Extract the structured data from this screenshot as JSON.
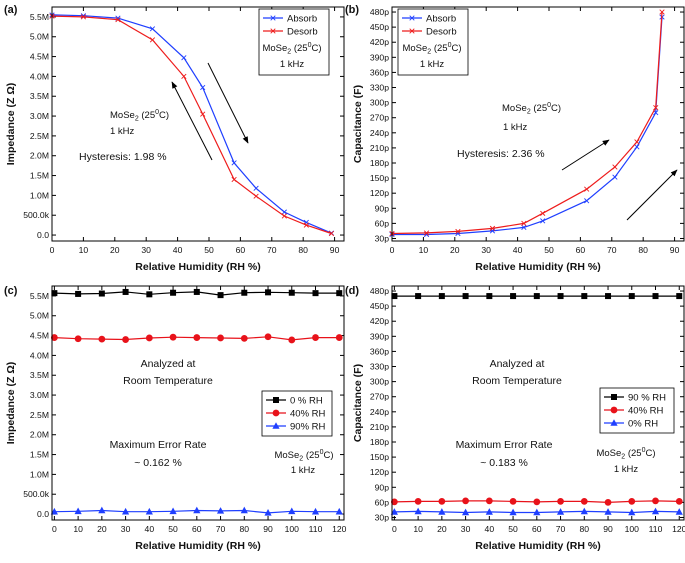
{
  "chart_data": [
    {
      "panel": "(a)",
      "type": "line",
      "xlabel": "Relative Humidity (RH %)",
      "ylabel": "Impedance (Z Ω)",
      "xlim": [
        0,
        93
      ],
      "xticks": [
        0,
        10,
        20,
        30,
        40,
        50,
        60,
        70,
        80,
        90
      ],
      "ylim": [
        -0.15,
        5.75
      ],
      "yticks": [
        0,
        0.5,
        1.0,
        1.5,
        2.0,
        2.5,
        3.0,
        3.5,
        4.0,
        4.5,
        5.0,
        5.5
      ],
      "ytick_labels": [
        "0.0",
        "500.0k",
        "1.0M",
        "1.5M",
        "2.0M",
        "2.5M",
        "3.0M",
        "3.5M",
        "4.0M",
        "4.5M",
        "5.0M",
        "5.5M"
      ],
      "series": [
        {
          "name": "Absorb",
          "color": "#1f3fff",
          "marker": "x",
          "x": [
            0,
            10,
            21,
            32,
            42,
            48,
            58,
            65,
            74,
            81,
            89
          ],
          "y": [
            5.55,
            5.53,
            5.47,
            5.2,
            4.47,
            3.72,
            1.82,
            1.18,
            0.58,
            0.32,
            0.05
          ]
        },
        {
          "name": "Desorb",
          "color": "#ee1c1c",
          "marker": "x",
          "x": [
            0,
            10,
            21,
            32,
            42,
            48,
            58,
            65,
            74,
            81,
            89
          ],
          "y": [
            5.52,
            5.5,
            5.43,
            4.92,
            4.0,
            3.05,
            1.4,
            0.98,
            0.48,
            0.25,
            0.04
          ]
        }
      ],
      "legend": [
        "Absorb",
        "Desorb"
      ],
      "legend_note": [
        "MoSe2 (25°C)",
        "1 kHz"
      ],
      "annotations": [
        "MoSe2 (25°C)",
        "1 kHz",
        "Hysteresis: 1.98 %"
      ]
    },
    {
      "panel": "(b)",
      "type": "line",
      "xlabel": "Relative Humidity (RH %)",
      "ylabel": "Capacitance (F)",
      "xlim": [
        0,
        93
      ],
      "xticks": [
        0,
        10,
        20,
        30,
        40,
        50,
        60,
        70,
        80,
        90
      ],
      "ylim": [
        25,
        490
      ],
      "yticks": [
        30,
        60,
        90,
        120,
        150,
        180,
        210,
        240,
        270,
        300,
        330,
        360,
        390,
        420,
        450,
        480
      ],
      "ytick_labels": [
        "30p",
        "60p",
        "90p",
        "120p",
        "150p",
        "180p",
        "210p",
        "240p",
        "270p",
        "300p",
        "330p",
        "360p",
        "390p",
        "420p",
        "450p",
        "480p"
      ],
      "series": [
        {
          "name": "Absorb",
          "color": "#1f3fff",
          "marker": "x",
          "x": [
            0,
            11,
            21,
            32,
            42,
            48,
            62,
            71,
            78,
            84,
            86
          ],
          "y": [
            38,
            38,
            40,
            45,
            52,
            65,
            105,
            152,
            212,
            280,
            470
          ]
        },
        {
          "name": "Desorb",
          "color": "#ee1c1c",
          "marker": "x",
          "x": [
            0,
            11,
            21,
            32,
            42,
            48,
            62,
            71,
            78,
            84,
            86
          ],
          "y": [
            40,
            41,
            44,
            50,
            60,
            80,
            128,
            172,
            222,
            290,
            480
          ]
        }
      ],
      "legend": [
        "Absorb",
        "Desorb"
      ],
      "legend_note": [
        "MoSe2 (25°C)",
        "1 kHz"
      ],
      "annotations": [
        "MoSe2 (25°C)",
        "1 kHz",
        "Hysteresis: 2.36 %"
      ]
    },
    {
      "panel": "(c)",
      "type": "line",
      "xlabel": "Relative Humidity (RH %)",
      "ylabel": "Impedance (Z Ω)",
      "xlim": [
        -1,
        122
      ],
      "xticks": [
        0,
        10,
        20,
        30,
        40,
        50,
        60,
        70,
        80,
        90,
        100,
        110,
        120
      ],
      "ylim": [
        -0.15,
        5.75
      ],
      "yticks": [
        0,
        0.5,
        1.0,
        1.5,
        2.0,
        2.5,
        3.0,
        3.5,
        4.0,
        4.5,
        5.0,
        5.5
      ],
      "ytick_labels": [
        "0.0",
        "500.0k",
        "1.0M",
        "1.5M",
        "2.0M",
        "2.5M",
        "3.0M",
        "3.5M",
        "4.0M",
        "4.5M",
        "5.0M",
        "5.5M"
      ],
      "series": [
        {
          "name": "0 % RH",
          "color": "#000000",
          "marker": "square",
          "x": [
            0,
            10,
            20,
            30,
            40,
            50,
            60,
            70,
            80,
            90,
            100,
            110,
            120
          ],
          "y": [
            5.57,
            5.55,
            5.56,
            5.6,
            5.54,
            5.58,
            5.6,
            5.52,
            5.58,
            5.59,
            5.58,
            5.57,
            5.57
          ]
        },
        {
          "name": "40% RH",
          "color": "#e8121a",
          "marker": "circle",
          "x": [
            0,
            10,
            20,
            30,
            40,
            50,
            60,
            70,
            80,
            90,
            100,
            110,
            120
          ],
          "y": [
            4.45,
            4.42,
            4.41,
            4.4,
            4.44,
            4.46,
            4.45,
            4.44,
            4.43,
            4.47,
            4.39,
            4.45,
            4.45
          ]
        },
        {
          "name": "90% RH",
          "color": "#1f3fff",
          "marker": "triangle",
          "x": [
            0,
            10,
            20,
            30,
            40,
            50,
            60,
            70,
            80,
            90,
            100,
            110,
            120
          ],
          "y": [
            0.06,
            0.07,
            0.09,
            0.06,
            0.06,
            0.07,
            0.09,
            0.08,
            0.09,
            0.03,
            0.07,
            0.06,
            0.06
          ]
        }
      ],
      "legend": [
        "0 % RH",
        "40% RH",
        "90% RH"
      ],
      "annotations": [
        "Analyzed at",
        "Room Temperature",
        "Maximum Error Rate",
        "~ 0.162 %",
        "MoSe2 (25°C)",
        "1 kHz"
      ]
    },
    {
      "panel": "(d)",
      "type": "line",
      "xlabel": "Relative Humidity (RH %)",
      "ylabel": "Capacitance (F)",
      "xlim": [
        -1,
        122
      ],
      "xticks": [
        0,
        10,
        20,
        30,
        40,
        50,
        60,
        70,
        80,
        90,
        100,
        110,
        120
      ],
      "ylim": [
        25,
        490
      ],
      "yticks": [
        30,
        60,
        90,
        120,
        150,
        180,
        210,
        240,
        270,
        300,
        330,
        360,
        390,
        420,
        450,
        480
      ],
      "ytick_labels": [
        "30p",
        "60p",
        "90p",
        "120p",
        "150p",
        "180p",
        "210p",
        "240p",
        "270p",
        "300p",
        "330p",
        "360p",
        "390p",
        "420p",
        "450p",
        "480p"
      ],
      "series": [
        {
          "name": "90 % RH",
          "color": "#000000",
          "marker": "square",
          "x": [
            0,
            10,
            20,
            30,
            40,
            50,
            60,
            70,
            80,
            90,
            100,
            110,
            120
          ],
          "y": [
            470,
            470,
            470,
            470,
            470,
            470,
            470,
            470,
            470,
            470,
            470,
            470,
            470
          ]
        },
        {
          "name": "40% RH",
          "color": "#e8121a",
          "marker": "circle",
          "x": [
            0,
            10,
            20,
            30,
            40,
            50,
            60,
            70,
            80,
            90,
            100,
            110,
            120
          ],
          "y": [
            61,
            62,
            62,
            63,
            63,
            62,
            61,
            62,
            62,
            60,
            62,
            63,
            62
          ]
        },
        {
          "name": "0% RH",
          "color": "#1f3fff",
          "marker": "triangle",
          "x": [
            0,
            10,
            20,
            30,
            40,
            50,
            60,
            70,
            80,
            90,
            100,
            110,
            120
          ],
          "y": [
            41,
            42,
            41,
            40,
            41,
            40,
            40,
            41,
            42,
            41,
            40,
            42,
            41
          ]
        }
      ],
      "legend": [
        "90 % RH",
        "40% RH",
        "0% RH"
      ],
      "annotations": [
        "Analyzed at",
        "Room Temperature",
        "Maximum Error Rate",
        "~ 0.183 %",
        "MoSe2 (25°C)",
        "1 kHz"
      ]
    }
  ]
}
